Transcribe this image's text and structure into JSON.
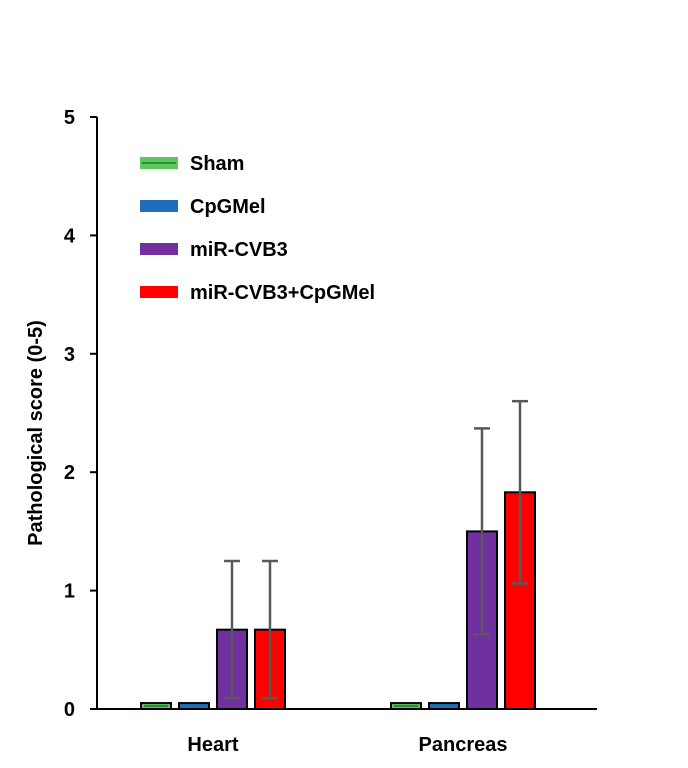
{
  "chart_data": {
    "type": "bar",
    "title": "",
    "xlabel": "",
    "ylabel": "Pathological score (0-5)",
    "ylim": [
      0,
      5
    ],
    "yticks": [
      0,
      1,
      2,
      3,
      4,
      5
    ],
    "grid": false,
    "legend_position": "top-left",
    "categories": [
      "Heart",
      "Pancreas"
    ],
    "series": [
      {
        "name": "Sham",
        "color": "#5cc85a",
        "line_color": "#2e8b3a",
        "values": [
          0.05,
          0.05
        ],
        "errors": [
          0,
          0
        ]
      },
      {
        "name": "CpGMel",
        "color": "#1e6fb8",
        "line_color": "#1e6fb8",
        "values": [
          0.05,
          0.05
        ],
        "errors": [
          0,
          0
        ]
      },
      {
        "name": "miR-CVB3",
        "color": "#7030a0",
        "line_color": "#7030a0",
        "values": [
          0.67,
          1.5
        ],
        "errors": [
          0.58,
          0.87
        ]
      },
      {
        "name": "miR-CVB3+CpGMel",
        "color": "#ff0000",
        "line_color": "#ff0000",
        "values": [
          0.67,
          1.83
        ],
        "errors": [
          0.58,
          0.77
        ]
      }
    ]
  }
}
